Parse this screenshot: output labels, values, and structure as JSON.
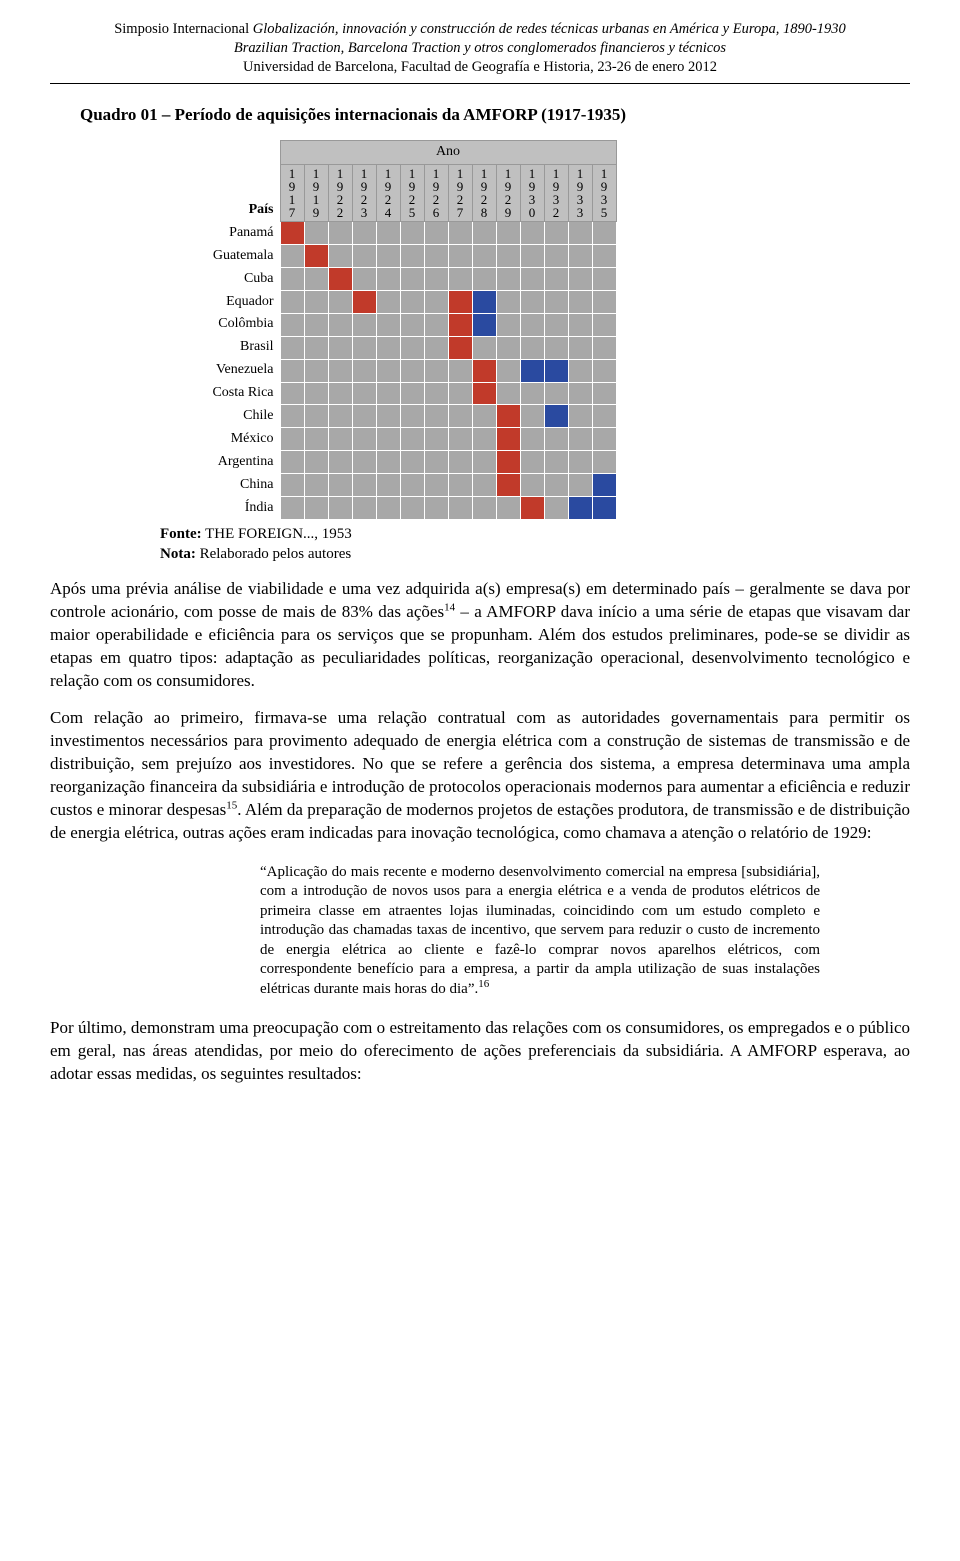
{
  "header": {
    "line1_lead": "Simposio Internacional",
    "line1_rest": "Globalización, innovación y construcción de redes técnicas urbanas en América y Europa, 1890-1930",
    "line2": "Brazilian Traction, Barcelona Traction y otros conglomerados financieros y técnicos",
    "line3": "Universidad de Barcelona, Facultad de Geografía e Historia, 23-26 de enero 2012"
  },
  "quadro": {
    "title": "Quadro 01 – Período de aquisições internacionais da AMFORP (1917-1935)",
    "ano_label": "Ano",
    "pais_label": "País",
    "years": [
      "1917",
      "1919",
      "1922",
      "1923",
      "1924",
      "1925",
      "1926",
      "1927",
      "1928",
      "1929",
      "1930",
      "1932",
      "1933",
      "1935"
    ],
    "countries": [
      "Panamá",
      "Guatemala",
      "Cuba",
      "Equador",
      "Colômbia",
      "Brasil",
      "Venezuela",
      "Costa Rica",
      "Chile",
      "México",
      "Argentina",
      "China",
      "Índia"
    ],
    "colors": {
      "gray": "#a8a8a8",
      "red": "#c13a2a",
      "blue": "#2a4aa0"
    },
    "grid": [
      [
        "red",
        "gray",
        "gray",
        "gray",
        "gray",
        "gray",
        "gray",
        "gray",
        "gray",
        "gray",
        "gray",
        "gray",
        "gray",
        "gray"
      ],
      [
        "gray",
        "red",
        "gray",
        "gray",
        "gray",
        "gray",
        "gray",
        "gray",
        "gray",
        "gray",
        "gray",
        "gray",
        "gray",
        "gray"
      ],
      [
        "gray",
        "gray",
        "red",
        "gray",
        "gray",
        "gray",
        "gray",
        "gray",
        "gray",
        "gray",
        "gray",
        "gray",
        "gray",
        "gray"
      ],
      [
        "gray",
        "gray",
        "gray",
        "red",
        "gray",
        "gray",
        "gray",
        "red",
        "blue",
        "gray",
        "gray",
        "gray",
        "gray",
        "gray"
      ],
      [
        "gray",
        "gray",
        "gray",
        "gray",
        "gray",
        "gray",
        "gray",
        "red",
        "blue",
        "gray",
        "gray",
        "gray",
        "gray",
        "gray"
      ],
      [
        "gray",
        "gray",
        "gray",
        "gray",
        "gray",
        "gray",
        "gray",
        "red",
        "gray",
        "gray",
        "gray",
        "gray",
        "gray",
        "gray"
      ],
      [
        "gray",
        "gray",
        "gray",
        "gray",
        "gray",
        "gray",
        "gray",
        "gray",
        "red",
        "gray",
        "blue",
        "blue",
        "gray",
        "gray"
      ],
      [
        "gray",
        "gray",
        "gray",
        "gray",
        "gray",
        "gray",
        "gray",
        "gray",
        "red",
        "gray",
        "gray",
        "gray",
        "gray",
        "gray"
      ],
      [
        "gray",
        "gray",
        "gray",
        "gray",
        "gray",
        "gray",
        "gray",
        "gray",
        "gray",
        "red",
        "gray",
        "blue",
        "gray",
        "gray"
      ],
      [
        "gray",
        "gray",
        "gray",
        "gray",
        "gray",
        "gray",
        "gray",
        "gray",
        "gray",
        "red",
        "gray",
        "gray",
        "gray",
        "gray"
      ],
      [
        "gray",
        "gray",
        "gray",
        "gray",
        "gray",
        "gray",
        "gray",
        "gray",
        "gray",
        "red",
        "gray",
        "gray",
        "gray",
        "gray"
      ],
      [
        "gray",
        "gray",
        "gray",
        "gray",
        "gray",
        "gray",
        "gray",
        "gray",
        "gray",
        "red",
        "gray",
        "gray",
        "gray",
        "blue"
      ],
      [
        "gray",
        "gray",
        "gray",
        "gray",
        "gray",
        "gray",
        "gray",
        "gray",
        "gray",
        "gray",
        "red",
        "gray",
        "blue",
        "blue"
      ]
    ],
    "fonte_label": "Fonte:",
    "fonte_value": "THE FOREIGN..., 1953",
    "nota_label": "Nota:",
    "nota_value": "Relaborado pelos autores"
  },
  "paragraphs": {
    "p1": "Após uma prévia análise de viabilidade e uma vez adquirida a(s) empresa(s) em determinado país – geralmente se dava por controle acionário, com posse de mais de 83% das ações",
    "p1_sup": "14",
    "p1_tail": " – a AMFORP dava início a uma série de etapas que visavam dar maior operabilidade e eficiência para os serviços que se propunham. Além dos estudos preliminares, pode-se se dividir as etapas em quatro tipos: adaptação as peculiaridades políticas, reorganização operacional, desenvolvimento tecnológico e relação com os consumidores.",
    "p2": "Com relação ao primeiro, firmava-se uma relação contratual com as autoridades governamentais para permitir os investimentos necessários para provimento adequado de energia elétrica com a construção de sistemas de transmissão e de distribuição, sem prejuízo aos investidores. No que se refere a gerência dos sistema, a empresa determinava uma ampla reorganização financeira da subsidiária e introdução de protocolos operacionais modernos para aumentar a eficiência e reduzir custos e minorar despesas",
    "p2_sup": "15",
    "p2_tail": ". Além da preparação de modernos projetos de estações produtora, de transmissão e de distribuição de energia elétrica, outras ações eram indicadas para inovação tecnológica, como chamava a atenção o relatório de 1929:",
    "quote": "“Aplicação do mais recente e moderno desenvolvimento comercial na empresa [subsidiária], com a introdução de novos usos para a energia elétrica e a venda de produtos elétricos de primeira classe em atraentes lojas iluminadas, coincidindo com um estudo completo e introdução das chamadas taxas de incentivo, que servem para reduzir o custo de incremento de energia elétrica ao cliente e fazê-lo comprar novos aparelhos elétricos, com correspondente benefício para a empresa, a partir da ampla utilização de suas instalações elétricas durante mais horas do dia”.",
    "quote_sup": "16",
    "p3": "Por último, demonstram uma preocupação com o estreitamento das relações com os consumidores, os empregados e o público em geral, nas áreas atendidas, por meio do oferecimento de ações preferenciais da subsidiária. A AMFORP esperava, ao adotar essas medidas, os seguintes resultados:"
  }
}
